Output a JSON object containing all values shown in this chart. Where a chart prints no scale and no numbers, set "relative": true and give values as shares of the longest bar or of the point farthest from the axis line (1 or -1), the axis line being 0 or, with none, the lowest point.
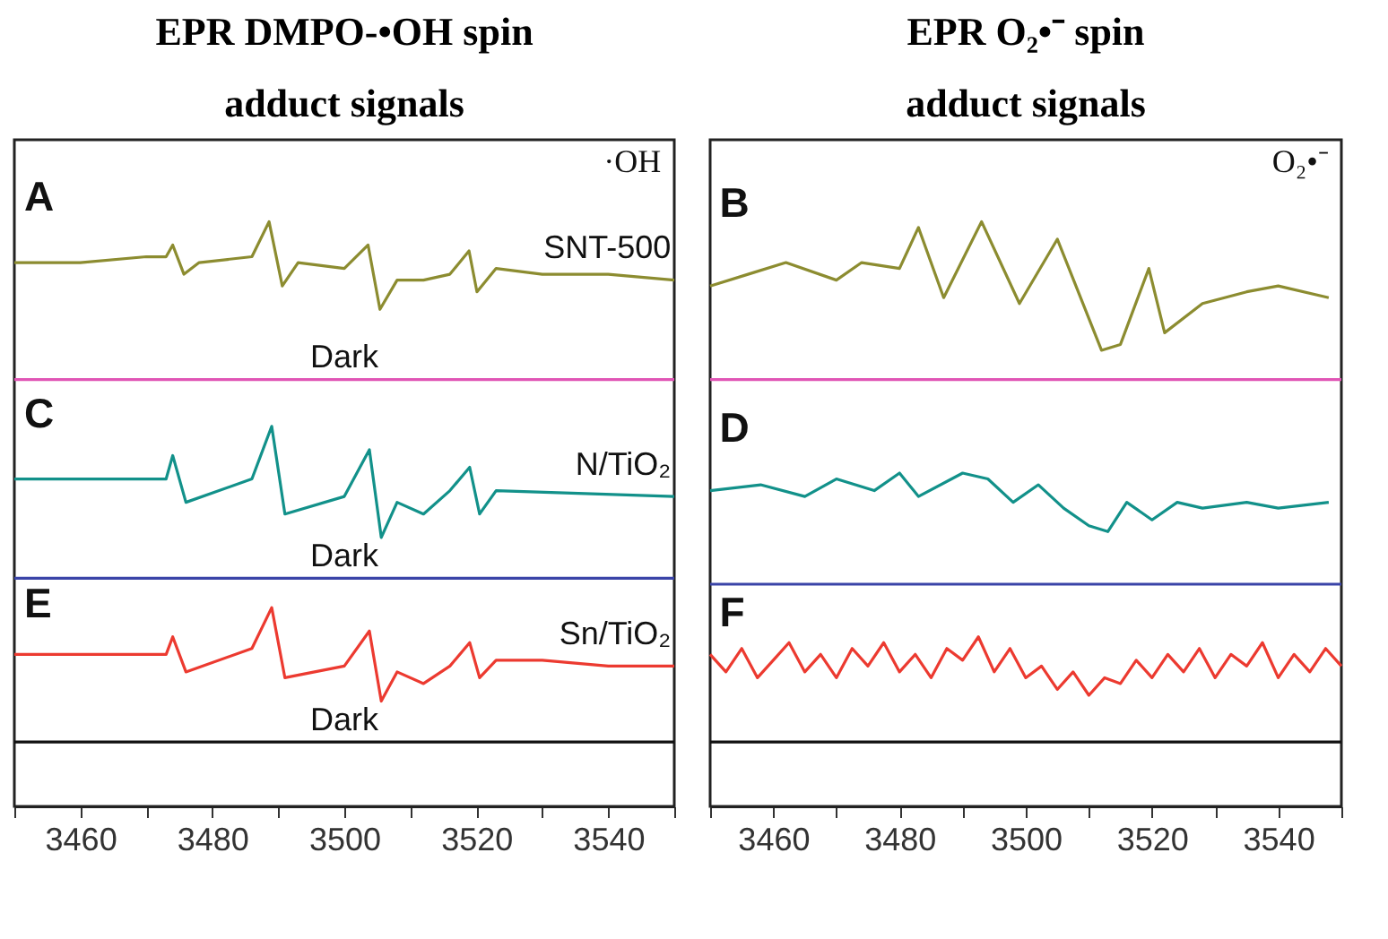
{
  "chart_data": [
    {
      "type": "line",
      "title": "EPR DMPO-•OH spin adduct signals",
      "relative": true,
      "xlim": [
        3450,
        3550
      ],
      "xticks": [
        {
          "value": 3450,
          "label": null
        },
        3460,
        {
          "value": 3470,
          "label": null
        },
        3480,
        {
          "value": 3490,
          "label": null
        },
        3500,
        {
          "value": 3510,
          "label": null
        },
        3520,
        {
          "value": 3530,
          "label": null
        },
        3540,
        {
          "value": 3550,
          "label": null
        }
      ],
      "annotations": [
        "A",
        "C",
        "E",
        "·OH"
      ],
      "series": [
        {
          "name": "SNT-500",
          "color": "#8c8c30",
          "x": [
            3450,
            3460,
            3470,
            3473,
            3474,
            3475.7,
            3478,
            3486,
            3488.6,
            3490.6,
            3493,
            3500,
            3503.6,
            3505.4,
            3508,
            3512,
            3516,
            3518.9,
            3520.1,
            3523,
            3530,
            3540,
            3550
          ],
          "values": [
            0.93,
            0.93,
            0.94,
            0.94,
            0.96,
            0.91,
            0.93,
            0.94,
            1.0,
            0.89,
            0.93,
            0.92,
            0.96,
            0.85,
            0.9,
            0.9,
            0.91,
            0.95,
            0.88,
            0.92,
            0.91,
            0.91,
            0.9
          ]
        },
        {
          "name": "Dark",
          "color": "#e055b5",
          "x": [
            3450,
            3500,
            3550
          ],
          "values": [
            0.73,
            0.73,
            0.73
          ]
        },
        {
          "name": "N/TiO₂",
          "color": "#12918a",
          "x": [
            3450,
            3473,
            3474,
            3476,
            3486,
            3489,
            3491,
            3500,
            3503.8,
            3505.6,
            3508,
            3512,
            3516,
            3519,
            3520.5,
            3523,
            3550
          ],
          "values": [
            0.56,
            0.56,
            0.6,
            0.52,
            0.56,
            0.65,
            0.5,
            0.53,
            0.61,
            0.46,
            0.52,
            0.5,
            0.54,
            0.58,
            0.5,
            0.54,
            0.53
          ]
        },
        {
          "name": "Dark",
          "color": "#3a44a8",
          "x": [
            3450,
            3500,
            3550
          ],
          "values": [
            0.39,
            0.39,
            0.39
          ]
        },
        {
          "name": "Sn/TiO₂",
          "color": "#ec3a30",
          "x": [
            3450,
            3473,
            3474,
            3476,
            3486,
            3489,
            3491,
            3500,
            3503.8,
            3505.6,
            3508,
            3512,
            3516,
            3519,
            3520.5,
            3523,
            3530,
            3540,
            3550
          ],
          "values": [
            0.26,
            0.26,
            0.29,
            0.23,
            0.27,
            0.34,
            0.22,
            0.24,
            0.3,
            0.18,
            0.23,
            0.21,
            0.24,
            0.28,
            0.22,
            0.25,
            0.25,
            0.24,
            0.24
          ]
        },
        {
          "name": "Dark",
          "color": "#111111",
          "x": [
            3450,
            3500,
            3550
          ],
          "values": [
            0.11,
            0.11,
            0.11
          ]
        }
      ]
    },
    {
      "type": "line",
      "title": "EPR O₂•⁻ spin adduct signals",
      "relative": true,
      "xlim": [
        3450,
        3550
      ],
      "xticks": [
        {
          "value": 3450,
          "label": null
        },
        3460,
        {
          "value": 3470,
          "label": null
        },
        3480,
        {
          "value": 3490,
          "label": null
        },
        3500,
        {
          "value": 3510,
          "label": null
        },
        3520,
        {
          "value": 3530,
          "label": null
        },
        3540,
        {
          "value": 3550,
          "label": null
        }
      ],
      "annotations": [
        "B",
        "D",
        "F",
        "O₂•⁻"
      ],
      "series": [
        {
          "color": "#8c8c30",
          "x": [
            3450,
            3456,
            3462,
            3470,
            3474,
            3480,
            3483,
            3487,
            3493,
            3499,
            3505,
            3512,
            3515,
            3519.5,
            3522,
            3528,
            3535,
            3540,
            3548
          ],
          "values": [
            0.89,
            0.91,
            0.93,
            0.9,
            0.93,
            0.92,
            0.99,
            0.87,
            1.0,
            0.86,
            0.97,
            0.78,
            0.79,
            0.92,
            0.81,
            0.86,
            0.88,
            0.89,
            0.87
          ]
        },
        {
          "color": "#e055b5",
          "x": [
            3450,
            3500,
            3550
          ],
          "values": [
            0.73,
            0.73,
            0.73
          ]
        },
        {
          "color": "#12918a",
          "x": [
            3450,
            3458,
            3465,
            3470,
            3476,
            3480,
            3483,
            3490,
            3494,
            3498,
            3502,
            3506,
            3510,
            3513,
            3516,
            3520,
            3524,
            3528,
            3535,
            3540,
            3548
          ],
          "values": [
            0.54,
            0.55,
            0.53,
            0.56,
            0.54,
            0.57,
            0.53,
            0.57,
            0.56,
            0.52,
            0.55,
            0.51,
            0.48,
            0.47,
            0.52,
            0.49,
            0.52,
            0.51,
            0.52,
            0.51,
            0.52
          ]
        },
        {
          "color": "#3a44a8",
          "x": [
            3450,
            3500,
            3550
          ],
          "values": [
            0.38,
            0.38,
            0.38
          ]
        },
        {
          "color": "#ec3a30",
          "x": [
            3450,
            3452.5,
            3455,
            3457.5,
            3460,
            3462.5,
            3465,
            3467.5,
            3470,
            3472.5,
            3475,
            3477.5,
            3480,
            3482.5,
            3485,
            3487.5,
            3490,
            3492.5,
            3495,
            3497.5,
            3500,
            3502.5,
            3505,
            3507.5,
            3510,
            3512.5,
            3515,
            3517.5,
            3520,
            3522.5,
            3525,
            3527.5,
            3530,
            3532.5,
            3535,
            3537.5,
            3540,
            3542.5,
            3545,
            3547.5,
            3550
          ],
          "values": [
            0.26,
            0.23,
            0.27,
            0.22,
            0.25,
            0.28,
            0.23,
            0.26,
            0.22,
            0.27,
            0.24,
            0.28,
            0.23,
            0.26,
            0.22,
            0.27,
            0.25,
            0.29,
            0.23,
            0.27,
            0.22,
            0.24,
            0.2,
            0.23,
            0.19,
            0.22,
            0.21,
            0.25,
            0.22,
            0.26,
            0.23,
            0.27,
            0.22,
            0.26,
            0.24,
            0.28,
            0.22,
            0.26,
            0.23,
            0.27,
            0.24
          ]
        },
        {
          "color": "#111111",
          "x": [
            3450,
            3500,
            3550
          ],
          "values": [
            0.11,
            0.11,
            0.11
          ]
        }
      ]
    }
  ]
}
